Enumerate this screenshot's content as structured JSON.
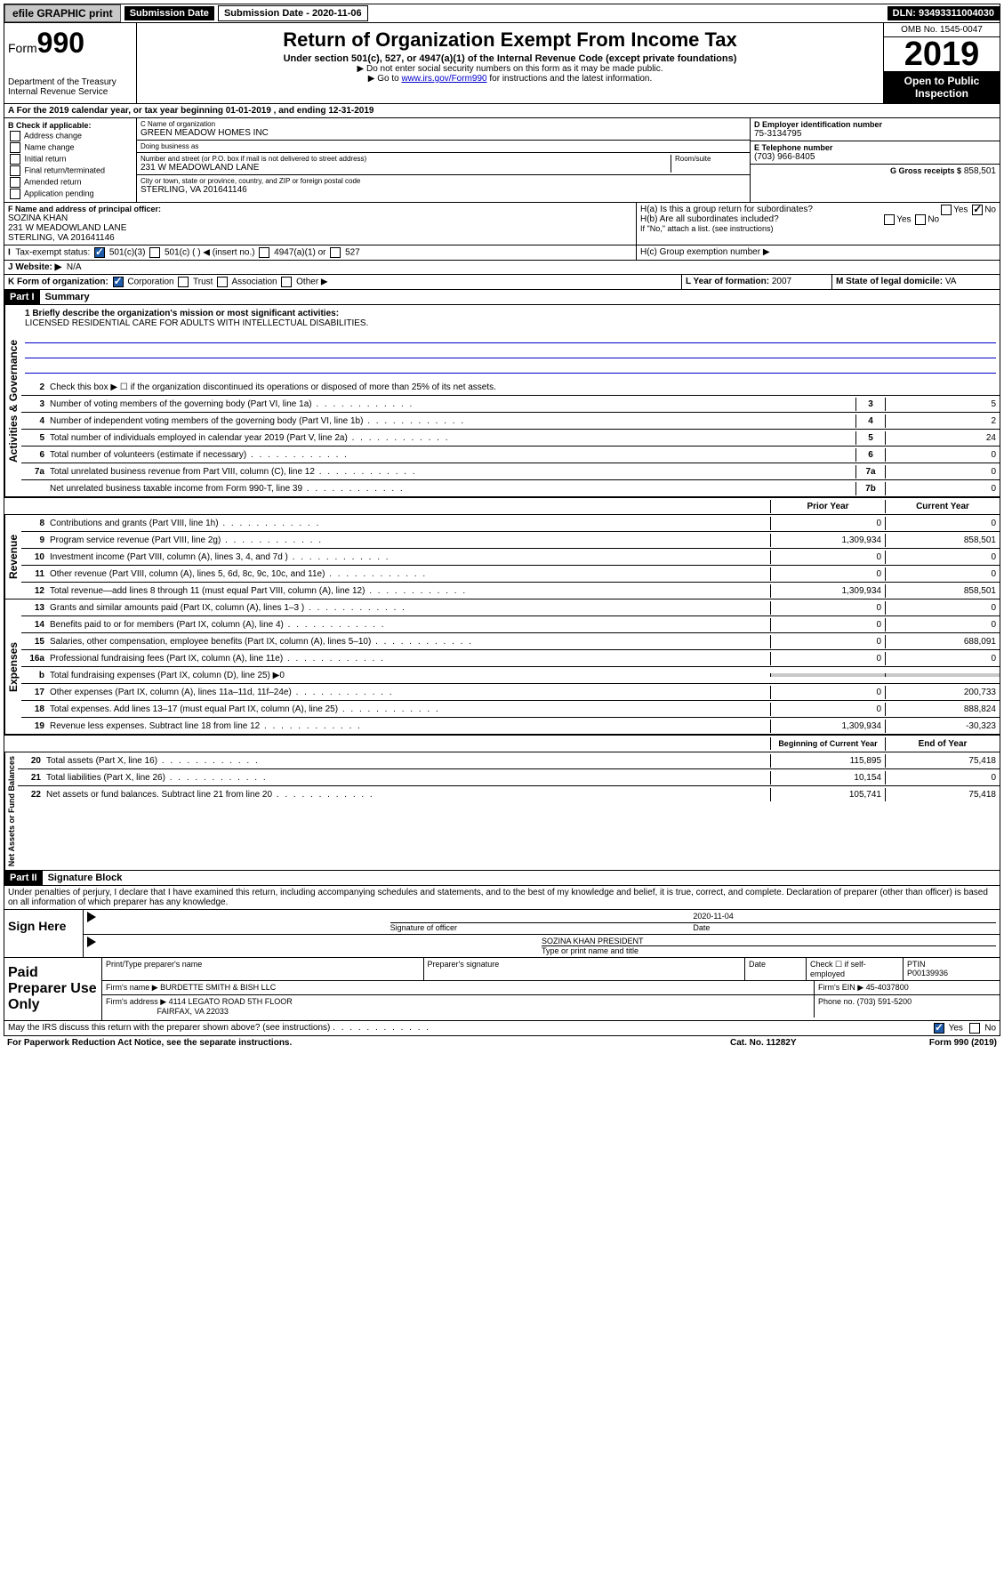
{
  "topbar": {
    "efile": "efile GRAPHIC print",
    "sub_label": "Submission Date - 2020-11-06",
    "dln": "DLN: 93493311004030"
  },
  "header": {
    "form_prefix": "Form",
    "form_number": "990",
    "dept": "Department of the Treasury",
    "irs": "Internal Revenue Service",
    "title": "Return of Organization Exempt From Income Tax",
    "subtitle": "Under section 501(c), 527, or 4947(a)(1) of the Internal Revenue Code (except private foundations)",
    "note1": "▶ Do not enter social security numbers on this form as it may be made public.",
    "note2_prefix": "▶ Go to ",
    "note2_link": "www.irs.gov/Form990",
    "note2_suffix": " for instructions and the latest information.",
    "omb": "OMB No. 1545-0047",
    "year": "2019",
    "inspection1": "Open to Public",
    "inspection2": "Inspection"
  },
  "period": "A For the 2019 calendar year, or tax year beginning 01-01-2019    , and ending 12-31-2019",
  "boxB": {
    "title": "B Check if applicable:",
    "opts": [
      "Address change",
      "Name change",
      "Initial return",
      "Final return/terminated",
      "Amended return",
      "Application pending"
    ]
  },
  "boxC": {
    "name_label": "C Name of organization",
    "name": "GREEN MEADOW HOMES INC",
    "dba_label": "Doing business as",
    "addr_label": "Number and street (or P.O. box if mail is not delivered to street address)",
    "room_label": "Room/suite",
    "addr": "231 W MEADOWLAND LANE",
    "city_label": "City or town, state or province, country, and ZIP or foreign postal code",
    "city": "STERLING, VA  201641146"
  },
  "boxD": {
    "ein_label": "D Employer identification number",
    "ein": "75-3134795",
    "tel_label": "E Telephone number",
    "tel": "(703) 966-8405",
    "gross_label": "G Gross receipts $",
    "gross": "858,501"
  },
  "boxF": {
    "label": "F  Name and address of principal officer:",
    "name": "SOZINA KHAN",
    "addr1": "231 W MEADOWLAND LANE",
    "addr2": "STERLING, VA  201641146"
  },
  "boxH": {
    "ha": "H(a)  Is this a group return for subordinates?",
    "hb": "H(b)  Are all subordinates included?",
    "hb_note": "If \"No,\" attach a list. (see instructions)",
    "hc": "H(c)  Group exemption number ▶"
  },
  "taxExempt": {
    "label": "Tax-exempt status:",
    "opt1": "501(c)(3)",
    "opt2": "501(c) (   ) ◀ (insert no.)",
    "opt3": "4947(a)(1) or",
    "opt4": "527"
  },
  "website": {
    "label": "J   Website: ▶",
    "value": "N/A"
  },
  "boxK": {
    "label": "K Form of organization:",
    "opts": [
      "Corporation",
      "Trust",
      "Association",
      "Other ▶"
    ]
  },
  "boxL": {
    "label": "L Year of formation:",
    "value": "2007"
  },
  "boxM": {
    "label": "M State of legal domicile:",
    "value": "VA"
  },
  "part1": {
    "header": "Part I",
    "title": "Summary"
  },
  "mission": {
    "label": "1  Briefly describe the organization's mission or most significant activities:",
    "text": "LICENSED RESIDENTIAL CARE FOR ADULTS WITH INTELLECTUAL DISABILITIES."
  },
  "governance_label": "Activities & Governance",
  "revenue_label": "Revenue",
  "expenses_label": "Expenses",
  "netassets_label": "Net Assets or Fund Balances",
  "lines_gov": [
    {
      "num": "2",
      "text": "Check this box ▶ ☐  if the organization discontinued its operations or disposed of more than 25% of its net assets."
    },
    {
      "num": "3",
      "text": "Number of voting members of the governing body (Part VI, line 1a)",
      "box": "3",
      "val": "5"
    },
    {
      "num": "4",
      "text": "Number of independent voting members of the governing body (Part VI, line 1b)",
      "box": "4",
      "val": "2"
    },
    {
      "num": "5",
      "text": "Total number of individuals employed in calendar year 2019 (Part V, line 2a)",
      "box": "5",
      "val": "24"
    },
    {
      "num": "6",
      "text": "Total number of volunteers (estimate if necessary)",
      "box": "6",
      "val": "0"
    },
    {
      "num": "7a",
      "text": "Total unrelated business revenue from Part VIII, column (C), line 12",
      "box": "7a",
      "val": "0"
    },
    {
      "num": "",
      "text": "Net unrelated business taxable income from Form 990-T, line 39",
      "box": "7b",
      "val": "0"
    }
  ],
  "col_headers": {
    "prior": "Prior Year",
    "current": "Current Year"
  },
  "lines_rev": [
    {
      "num": "8",
      "text": "Contributions and grants (Part VIII, line 1h)",
      "v1": "0",
      "v2": "0"
    },
    {
      "num": "9",
      "text": "Program service revenue (Part VIII, line 2g)",
      "v1": "1,309,934",
      "v2": "858,501"
    },
    {
      "num": "10",
      "text": "Investment income (Part VIII, column (A), lines 3, 4, and 7d )",
      "v1": "0",
      "v2": "0"
    },
    {
      "num": "11",
      "text": "Other revenue (Part VIII, column (A), lines 5, 6d, 8c, 9c, 10c, and 11e)",
      "v1": "0",
      "v2": "0"
    },
    {
      "num": "12",
      "text": "Total revenue—add lines 8 through 11 (must equal Part VIII, column (A), line 12)",
      "v1": "1,309,934",
      "v2": "858,501"
    }
  ],
  "lines_exp": [
    {
      "num": "13",
      "text": "Grants and similar amounts paid (Part IX, column (A), lines 1–3 )",
      "v1": "0",
      "v2": "0"
    },
    {
      "num": "14",
      "text": "Benefits paid to or for members (Part IX, column (A), line 4)",
      "v1": "0",
      "v2": "0"
    },
    {
      "num": "15",
      "text": "Salaries, other compensation, employee benefits (Part IX, column (A), lines 5–10)",
      "v1": "0",
      "v2": "688,091"
    },
    {
      "num": "16a",
      "text": "Professional fundraising fees (Part IX, column (A), line 11e)",
      "v1": "0",
      "v2": "0"
    },
    {
      "num": "b",
      "text": "Total fundraising expenses (Part IX, column (D), line 25) ▶0",
      "shaded": true
    },
    {
      "num": "17",
      "text": "Other expenses (Part IX, column (A), lines 11a–11d, 11f–24e)",
      "v1": "0",
      "v2": "200,733"
    },
    {
      "num": "18",
      "text": "Total expenses. Add lines 13–17 (must equal Part IX, column (A), line 25)",
      "v1": "0",
      "v2": "888,824"
    },
    {
      "num": "19",
      "text": "Revenue less expenses. Subtract line 18 from line 12",
      "v1": "1,309,934",
      "v2": "-30,323"
    }
  ],
  "col_headers2": {
    "begin": "Beginning of Current Year",
    "end": "End of Year"
  },
  "lines_net": [
    {
      "num": "20",
      "text": "Total assets (Part X, line 16)",
      "v1": "115,895",
      "v2": "75,418"
    },
    {
      "num": "21",
      "text": "Total liabilities (Part X, line 26)",
      "v1": "10,154",
      "v2": "0"
    },
    {
      "num": "22",
      "text": "Net assets or fund balances. Subtract line 21 from line 20",
      "v1": "105,741",
      "v2": "75,418"
    }
  ],
  "part2": {
    "header": "Part II",
    "title": "Signature Block"
  },
  "perjury": "Under penalties of perjury, I declare that I have examined this return, including accompanying schedules and statements, and to the best of my knowledge and belief, it is true, correct, and complete. Declaration of preparer (other than officer) is based on all information of which preparer has any knowledge.",
  "sign": {
    "label": "Sign Here",
    "sig_label": "Signature of officer",
    "date": "2020-11-04",
    "date_label": "Date",
    "name": "SOZINA KHAN  PRESIDENT",
    "name_label": "Type or print name and title"
  },
  "preparer": {
    "label": "Paid Preparer Use Only",
    "h1": "Print/Type preparer's name",
    "h2": "Preparer's signature",
    "h3": "Date",
    "h4": "Check ☐ if self-employed",
    "h5": "PTIN",
    "ptin": "P00139936",
    "firm_label": "Firm's name      ▶",
    "firm": "BURDETTE SMITH & BISH LLC",
    "ein_label": "Firm's EIN ▶",
    "ein": "45-4037800",
    "addr_label": "Firm's address ▶",
    "addr1": "4114 LEGATO ROAD 5TH FLOOR",
    "addr2": "FAIRFAX, VA  22033",
    "phone_label": "Phone no.",
    "phone": "(703) 591-5200"
  },
  "discuss": "May the IRS discuss this return with the preparer shown above? (see instructions)",
  "footer": {
    "left": "For Paperwork Reduction Act Notice, see the separate instructions.",
    "mid": "Cat. No. 11282Y",
    "right": "Form 990 (2019)"
  }
}
